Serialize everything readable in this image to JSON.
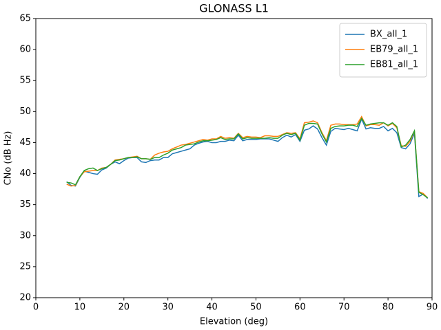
{
  "chart_data": {
    "type": "line",
    "title": "GLONASS L1",
    "x_label": "Elevation (deg)",
    "y_label": "CNo (dB Hz)",
    "x": [
      7,
      8,
      9,
      10,
      11,
      12,
      13,
      14,
      15,
      16,
      17,
      18,
      19,
      20,
      21,
      22,
      23,
      24,
      25,
      26,
      27,
      28,
      29,
      30,
      31,
      32,
      33,
      34,
      35,
      36,
      37,
      38,
      39,
      40,
      41,
      42,
      43,
      44,
      45,
      46,
      47,
      48,
      49,
      50,
      51,
      52,
      53,
      54,
      55,
      56,
      57,
      58,
      59,
      60,
      61,
      62,
      63,
      64,
      65,
      66,
      67,
      68,
      69,
      70,
      71,
      72,
      73,
      74,
      75,
      76,
      77,
      78,
      79,
      80,
      81,
      82,
      83,
      84,
      85,
      86,
      87,
      88,
      89
    ],
    "series": [
      {
        "name": "BX_all_1",
        "color": "#1f77b4",
        "values": [
          38.7,
          38.1,
          38.0,
          39.4,
          40.4,
          40.2,
          40.0,
          39.9,
          40.6,
          40.9,
          41.5,
          41.9,
          41.6,
          42.1,
          42.5,
          42.6,
          42.6,
          41.9,
          41.8,
          42.1,
          42.2,
          42.2,
          42.6,
          42.6,
          43.2,
          43.4,
          43.6,
          43.8,
          44.0,
          44.6,
          44.9,
          45.1,
          45.2,
          45.0,
          45.0,
          45.2,
          45.2,
          45.4,
          45.3,
          46.2,
          45.3,
          45.5,
          45.5,
          45.5,
          45.6,
          45.6,
          45.6,
          45.4,
          45.2,
          45.8,
          46.2,
          45.9,
          46.3,
          45.2,
          47.0,
          47.2,
          47.7,
          47.2,
          45.8,
          44.6,
          46.8,
          47.3,
          47.2,
          47.1,
          47.3,
          47.1,
          46.9,
          48.8,
          47.2,
          47.4,
          47.3,
          47.3,
          47.6,
          46.9,
          47.3,
          46.6,
          44.2,
          44.0,
          44.8,
          46.5,
          36.3,
          36.7,
          36.0
        ]
      },
      {
        "name": "EB79_all_1",
        "color": "#ff7f0e",
        "values": [
          38.3,
          38.0,
          38.1,
          39.5,
          40.3,
          40.4,
          40.5,
          40.5,
          40.9,
          41.0,
          41.5,
          42.2,
          42.3,
          42.4,
          42.6,
          42.7,
          42.8,
          42.4,
          42.4,
          42.3,
          43.0,
          43.3,
          43.5,
          43.6,
          44.0,
          44.3,
          44.6,
          44.7,
          44.9,
          45.1,
          45.3,
          45.5,
          45.4,
          45.6,
          45.6,
          46.0,
          45.7,
          45.8,
          45.7,
          46.5,
          45.8,
          46.0,
          45.9,
          45.9,
          45.8,
          46.1,
          46.1,
          46.0,
          46.0,
          46.3,
          46.6,
          46.5,
          46.6,
          45.6,
          48.2,
          48.3,
          48.5,
          48.2,
          46.6,
          45.3,
          47.8,
          48.0,
          48.0,
          47.9,
          47.9,
          47.9,
          48.0,
          49.2,
          47.7,
          47.9,
          47.9,
          47.8,
          48.2,
          47.7,
          48.1,
          47.4,
          44.5,
          44.4,
          45.2,
          46.9,
          37.1,
          36.8,
          36.1
        ]
      },
      {
        "name": "EB81_all_1",
        "color": "#2ca02c",
        "values": [
          38.6,
          38.5,
          38.2,
          39.5,
          40.5,
          40.8,
          40.9,
          40.5,
          40.8,
          41.0,
          41.5,
          42.1,
          42.2,
          42.4,
          42.6,
          42.6,
          42.7,
          42.4,
          42.4,
          42.3,
          42.6,
          42.6,
          43.0,
          43.3,
          43.8,
          44.0,
          44.2,
          44.6,
          44.7,
          44.8,
          45.1,
          45.3,
          45.3,
          45.4,
          45.5,
          45.8,
          45.5,
          45.6,
          45.6,
          46.4,
          45.6,
          45.8,
          45.7,
          45.7,
          45.7,
          45.7,
          45.8,
          45.7,
          45.7,
          46.2,
          46.5,
          46.3,
          46.5,
          45.4,
          47.8,
          48.1,
          48.1,
          48.0,
          46.4,
          45.1,
          47.3,
          47.6,
          47.7,
          47.7,
          47.8,
          47.8,
          47.6,
          48.9,
          47.8,
          48.0,
          48.1,
          48.2,
          48.2,
          47.8,
          48.2,
          47.6,
          44.3,
          44.6,
          45.5,
          46.9,
          37.0,
          36.6,
          36.1
        ]
      }
    ],
    "xlim": [
      0,
      90
    ],
    "xticks": [
      0,
      10,
      20,
      30,
      40,
      50,
      60,
      70,
      80,
      90
    ],
    "ylim": [
      20,
      65
    ],
    "yticks": [
      20,
      25,
      30,
      35,
      40,
      45,
      50,
      55,
      60,
      65
    ],
    "grid": false,
    "legend": "upper-right"
  }
}
